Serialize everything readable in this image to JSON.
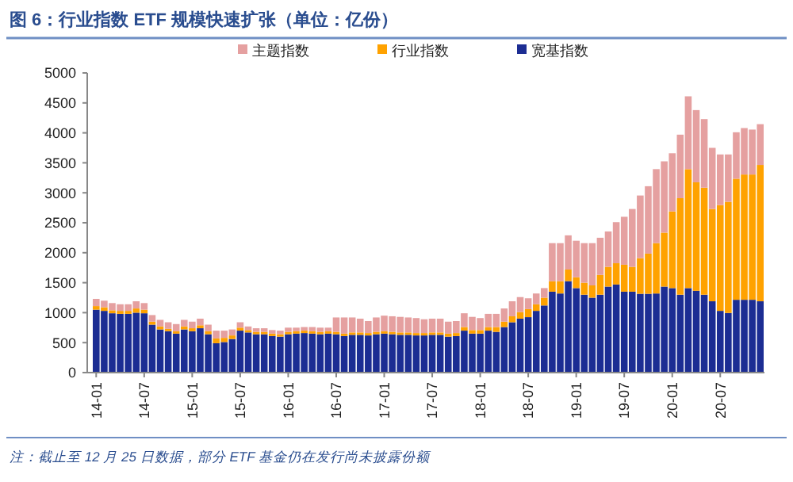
{
  "chart_data": {
    "type": "bar",
    "stacked": true,
    "title": "图 6：行业指数 ETF 规模快速扩张（单位：亿份）",
    "annotations": [
      "注：截止至 12 月 25 日数据，部分 ETF 基金仍在发行尚未披露份额"
    ],
    "categories": [
      "14-01",
      null,
      null,
      null,
      null,
      null,
      "14-07",
      null,
      null,
      null,
      null,
      null,
      "15-01",
      null,
      null,
      null,
      null,
      null,
      "15-07",
      null,
      null,
      null,
      null,
      null,
      "16-01",
      null,
      null,
      null,
      null,
      null,
      "16-07",
      null,
      null,
      null,
      null,
      null,
      "17-01",
      null,
      null,
      null,
      null,
      null,
      "17-07",
      null,
      null,
      null,
      null,
      null,
      "18-01",
      null,
      null,
      null,
      null,
      null,
      "18-07",
      null,
      null,
      null,
      null,
      null,
      "19-01",
      null,
      null,
      null,
      null,
      null,
      "19-07",
      null,
      null,
      null,
      null,
      null,
      "20-01",
      null,
      null,
      null,
      null,
      null,
      "20-07",
      null,
      null,
      null,
      null,
      null
    ],
    "series": [
      {
        "name": "宽基指数",
        "color": "#1c2d93",
        "values": [
          1050,
          1030,
          990,
          980,
          980,
          1000,
          990,
          800,
          720,
          690,
          650,
          720,
          690,
          740,
          640,
          490,
          510,
          560,
          700,
          670,
          640,
          640,
          610,
          600,
          640,
          650,
          660,
          650,
          640,
          650,
          640,
          610,
          630,
          630,
          620,
          640,
          650,
          640,
          630,
          630,
          620,
          620,
          630,
          630,
          600,
          610,
          700,
          650,
          650,
          700,
          680,
          760,
          840,
          900,
          925,
          1030,
          1120,
          1350,
          1320,
          1525,
          1410,
          1300,
          1250,
          1300,
          1435,
          1470,
          1350,
          1350,
          1315,
          1315,
          1320,
          1435,
          1410,
          1300,
          1410,
          1365,
          1300,
          1190,
          1030,
          995,
          1215,
          1215,
          1215,
          1190
        ]
      },
      {
        "name": "行业指数",
        "color": "#ffa200",
        "values": [
          60,
          60,
          50,
          50,
          50,
          70,
          60,
          50,
          50,
          40,
          40,
          50,
          50,
          50,
          50,
          80,
          70,
          60,
          50,
          40,
          40,
          40,
          40,
          40,
          40,
          40,
          40,
          40,
          40,
          40,
          40,
          40,
          40,
          40,
          40,
          40,
          40,
          40,
          40,
          40,
          40,
          40,
          40,
          40,
          50,
          50,
          60,
          60,
          60,
          60,
          80,
          90,
          100,
          110,
          135,
          110,
          130,
          175,
          205,
          195,
          180,
          200,
          205,
          330,
          330,
          355,
          450,
          415,
          595,
          670,
          840,
          900,
          1280,
          1610,
          1985,
          1810,
          1785,
          1540,
          1765,
          1855,
          2020,
          2090,
          2090,
          2275
        ]
      },
      {
        "name": "主题指数",
        "color": "#e5a0a0",
        "values": [
          120,
          110,
          120,
          110,
          110,
          120,
          110,
          110,
          110,
          110,
          120,
          110,
          110,
          110,
          110,
          130,
          120,
          100,
          90,
          60,
          60,
          60,
          60,
          60,
          70,
          60,
          60,
          70,
          70,
          60,
          240,
          270,
          250,
          230,
          200,
          240,
          260,
          260,
          260,
          250,
          250,
          230,
          230,
          230,
          200,
          200,
          230,
          220,
          200,
          220,
          220,
          220,
          250,
          250,
          180,
          180,
          160,
          635,
          635,
          570,
          610,
          660,
          705,
          620,
          590,
          685,
          800,
          965,
          1045,
          1125,
          1235,
          1190,
          970,
          1060,
          1215,
          1205,
          1145,
          1020,
          845,
          790,
          775,
          775,
          750,
          680
        ]
      }
    ],
    "ylim": [
      0,
      5000
    ],
    "yticks": [
      0,
      500,
      1000,
      1500,
      2000,
      2500,
      3000,
      3500,
      4000,
      4500,
      5000
    ],
    "legend": "top"
  }
}
